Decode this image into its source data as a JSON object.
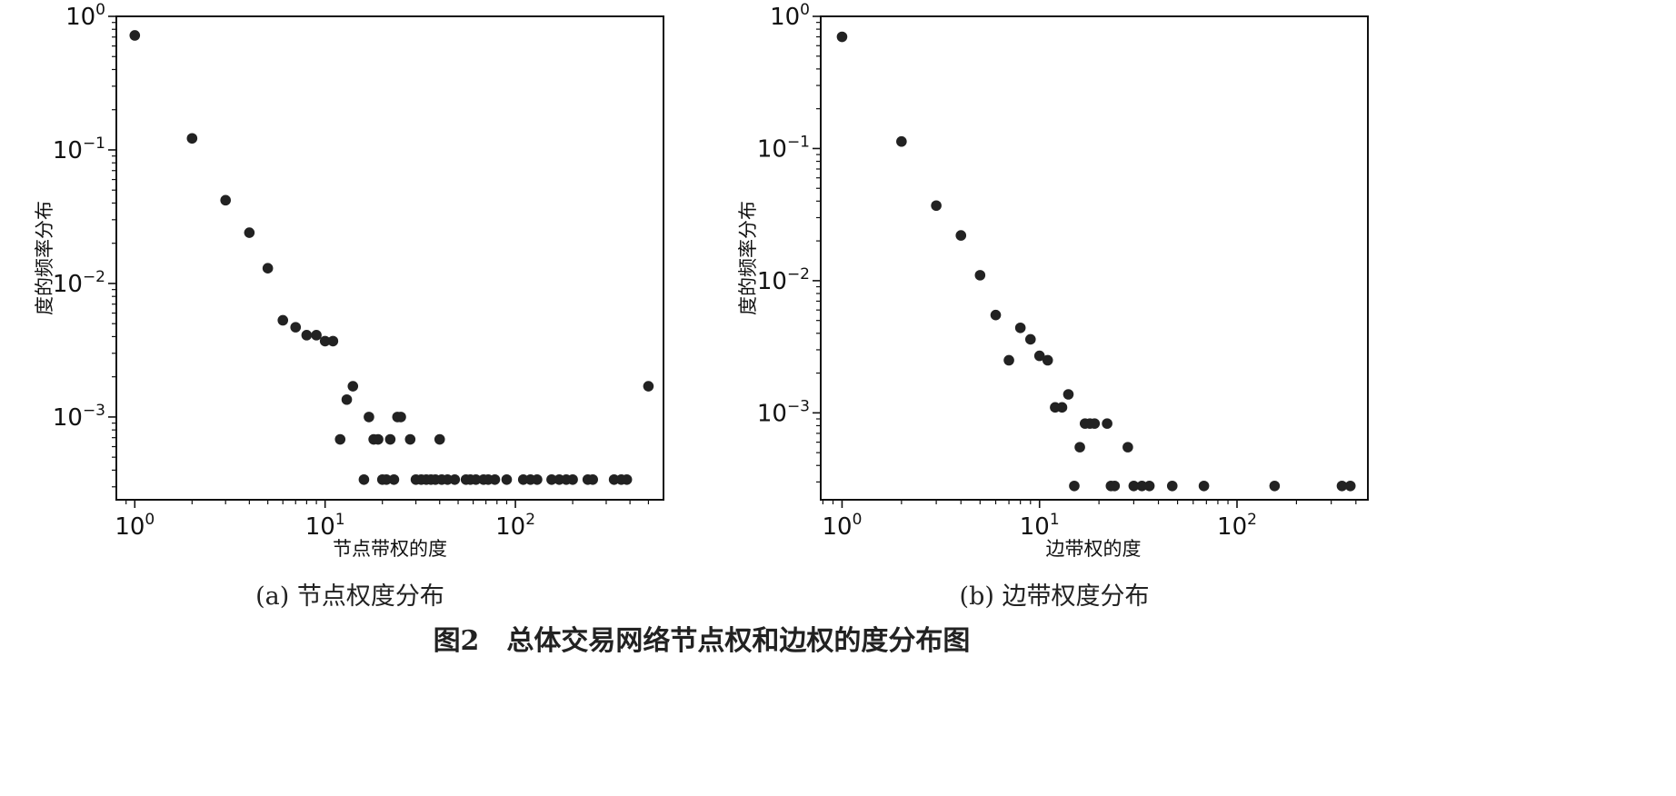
{
  "chart_data": [
    {
      "type": "scatter",
      "x_scale": "log",
      "y_scale": "log",
      "xlabel": "节点带权的度",
      "ylabel": "度的频率分布",
      "xlim": [
        0.8,
        600
      ],
      "ylim": [
        0.00024,
        1.0
      ],
      "grid": false,
      "x_ticks": [
        {
          "base": "10",
          "exp": "0",
          "value": 1
        },
        {
          "base": "10",
          "exp": "1",
          "value": 10
        },
        {
          "base": "10",
          "exp": "2",
          "value": 100
        }
      ],
      "y_ticks": [
        {
          "base": "10",
          "exp": "0",
          "value": 1
        },
        {
          "base": "10",
          "exp": "−1",
          "value": 0.1
        },
        {
          "base": "10",
          "exp": "−2",
          "value": 0.01
        },
        {
          "base": "10",
          "exp": "−3",
          "value": 0.001
        }
      ],
      "caption": "(a)  节点权度分布",
      "color": "#222222",
      "points": [
        [
          1,
          0.72
        ],
        [
          2,
          0.122
        ],
        [
          3,
          0.042
        ],
        [
          4,
          0.024
        ],
        [
          5,
          0.013
        ],
        [
          6,
          0.0053
        ],
        [
          7,
          0.0047
        ],
        [
          8,
          0.0041
        ],
        [
          9,
          0.0041
        ],
        [
          10,
          0.0037
        ],
        [
          11,
          0.0037
        ],
        [
          12,
          0.00068
        ],
        [
          13,
          0.00135
        ],
        [
          14,
          0.0017
        ],
        [
          16,
          0.00034
        ],
        [
          17,
          0.001
        ],
        [
          18,
          0.00068
        ],
        [
          19,
          0.00068
        ],
        [
          20,
          0.00034
        ],
        [
          21,
          0.00034
        ],
        [
          22,
          0.00068
        ],
        [
          23,
          0.00034
        ],
        [
          24,
          0.001
        ],
        [
          25,
          0.001
        ],
        [
          28,
          0.00068
        ],
        [
          30,
          0.00034
        ],
        [
          32,
          0.00034
        ],
        [
          34,
          0.00034
        ],
        [
          36,
          0.00034
        ],
        [
          38,
          0.00034
        ],
        [
          40,
          0.00068
        ],
        [
          41,
          0.00034
        ],
        [
          44,
          0.00034
        ],
        [
          48,
          0.00034
        ],
        [
          55,
          0.00034
        ],
        [
          58,
          0.00034
        ],
        [
          62,
          0.00034
        ],
        [
          68,
          0.00034
        ],
        [
          72,
          0.00034
        ],
        [
          78,
          0.00034
        ],
        [
          90,
          0.00034
        ],
        [
          110,
          0.00034
        ],
        [
          120,
          0.00034
        ],
        [
          130,
          0.00034
        ],
        [
          155,
          0.00034
        ],
        [
          170,
          0.00034
        ],
        [
          185,
          0.00034
        ],
        [
          200,
          0.00034
        ],
        [
          240,
          0.00034
        ],
        [
          255,
          0.00034
        ],
        [
          330,
          0.00034
        ],
        [
          360,
          0.00034
        ],
        [
          385,
          0.00034
        ],
        [
          500,
          0.0017
        ]
      ]
    },
    {
      "type": "scatter",
      "x_scale": "log",
      "y_scale": "log",
      "xlabel": "边带权的度",
      "ylabel": "度的频率分布",
      "xlim": [
        0.78,
        460
      ],
      "ylim": [
        0.00022,
        1.0
      ],
      "grid": false,
      "x_ticks": [
        {
          "base": "10",
          "exp": "0",
          "value": 1
        },
        {
          "base": "10",
          "exp": "1",
          "value": 10
        },
        {
          "base": "10",
          "exp": "2",
          "value": 100
        }
      ],
      "y_ticks": [
        {
          "base": "10",
          "exp": "0",
          "value": 1
        },
        {
          "base": "10",
          "exp": "−1",
          "value": 0.1
        },
        {
          "base": "10",
          "exp": "−2",
          "value": 0.01
        },
        {
          "base": "10",
          "exp": "−3",
          "value": 0.001
        }
      ],
      "caption": "(b)  边带权度分布",
      "color": "#222222",
      "points": [
        [
          1,
          0.7
        ],
        [
          2,
          0.113
        ],
        [
          3,
          0.037
        ],
        [
          4,
          0.022
        ],
        [
          5,
          0.011
        ],
        [
          6,
          0.0055
        ],
        [
          7,
          0.0025
        ],
        [
          8,
          0.0044
        ],
        [
          9,
          0.0036
        ],
        [
          10,
          0.0027
        ],
        [
          11,
          0.0025
        ],
        [
          12,
          0.0011
        ],
        [
          13,
          0.0011
        ],
        [
          14,
          0.00138
        ],
        [
          15,
          0.00028
        ],
        [
          16,
          0.00055
        ],
        [
          17,
          0.00083
        ],
        [
          18,
          0.00083
        ],
        [
          19,
          0.00083
        ],
        [
          22,
          0.00083
        ],
        [
          23,
          0.00028
        ],
        [
          24,
          0.00028
        ],
        [
          28,
          0.00055
        ],
        [
          30,
          0.00028
        ],
        [
          33,
          0.00028
        ],
        [
          36,
          0.00028
        ],
        [
          47,
          0.00028
        ],
        [
          68,
          0.00028
        ],
        [
          155,
          0.00028
        ],
        [
          340,
          0.00028
        ],
        [
          375,
          0.00028
        ]
      ]
    }
  ],
  "figure_caption": "图2　总体交易网络节点权和边权的度分布图"
}
